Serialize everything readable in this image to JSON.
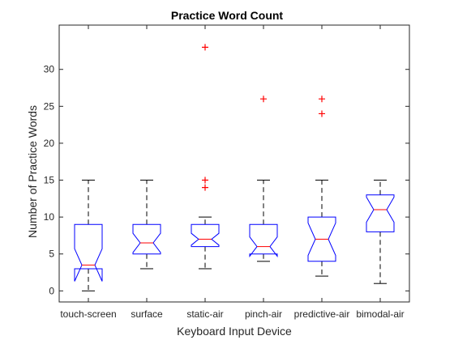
{
  "chart_data": {
    "type": "box",
    "title": "Practice Word Count",
    "xlabel": "Keyboard Input Device",
    "ylabel": "Number of Practice Words",
    "ylim": [
      -1.5,
      36
    ],
    "yticks": [
      0,
      5,
      10,
      15,
      20,
      25,
      30
    ],
    "grid": false,
    "categories": [
      "touch-screen",
      "surface",
      "static-air",
      "pinch-air",
      "predictive-air",
      "bimodal-air"
    ],
    "boxes": [
      {
        "category": "touch-screen",
        "whisker_low": 0,
        "q1": 3,
        "median": 3.5,
        "q3": 9,
        "whisker_high": 15,
        "notch_low": 1.3,
        "notch_high": 5.7,
        "outliers": []
      },
      {
        "category": "surface",
        "whisker_low": 3,
        "q1": 5,
        "median": 6.5,
        "q3": 9,
        "whisker_high": 15,
        "notch_low": 5.2,
        "notch_high": 7.8,
        "outliers": []
      },
      {
        "category": "static-air",
        "whisker_low": 3,
        "q1": 6,
        "median": 7,
        "q3": 9,
        "whisker_high": 10,
        "notch_low": 6.2,
        "notch_high": 7.8,
        "outliers": [
          14,
          15,
          33
        ]
      },
      {
        "category": "pinch-air",
        "whisker_low": 4,
        "q1": 5,
        "median": 6,
        "q3": 9,
        "whisker_high": 15,
        "notch_low": 4.7,
        "notch_high": 7.3,
        "outliers": [
          26
        ]
      },
      {
        "category": "predictive-air",
        "whisker_low": 2,
        "q1": 4,
        "median": 7,
        "q3": 10,
        "whisker_high": 15,
        "notch_low": 4.8,
        "notch_high": 9.2,
        "outliers": [
          24,
          26
        ]
      },
      {
        "category": "bimodal-air",
        "whisker_low": 1,
        "q1": 8,
        "median": 11,
        "q3": 13,
        "whisker_high": 15,
        "notch_low": 9.3,
        "notch_high": 12.7,
        "outliers": []
      }
    ],
    "colors": {
      "box": "#0000ff",
      "median": "#ff0000",
      "outlier": "#ff0000",
      "whisker": "#000000",
      "axes": "#262626"
    }
  }
}
